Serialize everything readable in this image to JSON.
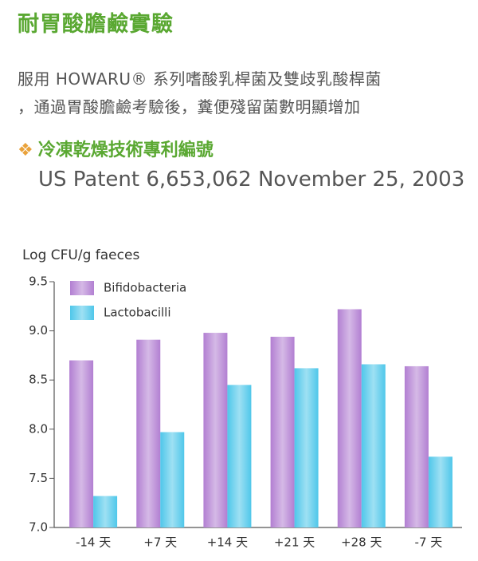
{
  "header": {
    "title": "耐胃酸膽鹼實驗",
    "lines": [
      "服用 HOWARU® 系列嗜酸乳桿菌及雙歧乳酸桿菌",
      "，通過胃酸膽鹼考驗後，糞便殘留菌數明顯增加"
    ],
    "heading": "冷凍乾燥技術專利編號",
    "patent": "US Patent 6,653,062 November 25, 2003"
  },
  "chart_data": {
    "type": "bar",
    "y_label": "Log CFU/g faeces",
    "categories": [
      "-14 天",
      "+7 天",
      "+14 天",
      "+21 天",
      "+28 天",
      "-7 天"
    ],
    "series": [
      {
        "name": "Bifidobacteria",
        "color": "#b27fd2",
        "values": [
          8.7,
          8.91,
          8.98,
          8.94,
          9.22,
          8.64
        ]
      },
      {
        "name": "Lactobacilli",
        "color": "#4fc7ea",
        "values": [
          7.32,
          7.97,
          8.45,
          8.62,
          8.66,
          7.72
        ]
      }
    ],
    "ylim": [
      7.0,
      9.5
    ],
    "yticks": [
      {
        "value": 7,
        "label": "7.0"
      },
      7.5,
      {
        "value": 8,
        "label": "8.0"
      },
      8.5,
      {
        "value": 9,
        "label": "9.0"
      },
      9.5
    ],
    "grid": false,
    "legend": "upper left"
  }
}
